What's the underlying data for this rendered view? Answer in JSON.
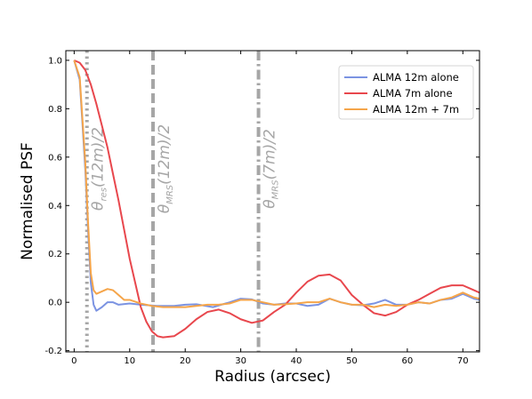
{
  "chart_data": {
    "type": "line",
    "xlabel": "Radius (arcsec)",
    "ylabel": "Normalised PSF",
    "xlim": [
      -1.5,
      73
    ],
    "ylim": [
      -0.205,
      1.04
    ],
    "xticks": [
      0,
      10,
      20,
      30,
      40,
      50,
      60,
      70
    ],
    "yticks": [
      -0.2,
      0.0,
      0.2,
      0.4,
      0.6,
      0.8,
      1.0
    ],
    "ytick_labels": [
      "-0.2",
      "0.0",
      "0.2",
      "0.4",
      "0.6",
      "0.8",
      "1.0"
    ],
    "legend_position": "top-right",
    "series": [
      {
        "name": "ALMA 12m alone",
        "color": "#7b93e2",
        "x": [
          0,
          1,
          2,
          2.5,
          3,
          3.5,
          4,
          5,
          6,
          7,
          8,
          10,
          12,
          15,
          18,
          20,
          22,
          25,
          28,
          30,
          32,
          34,
          36,
          38,
          40,
          42,
          44,
          46,
          48,
          50,
          52,
          54,
          56,
          58,
          60,
          62,
          64,
          66,
          68,
          70,
          72,
          73
        ],
        "y": [
          1.0,
          0.92,
          0.55,
          0.3,
          0.08,
          -0.01,
          -0.035,
          -0.02,
          0.0,
          0.0,
          -0.01,
          -0.005,
          -0.01,
          -0.015,
          -0.015,
          -0.01,
          -0.008,
          -0.02,
          0.0,
          0.015,
          0.012,
          -0.005,
          -0.01,
          -0.005,
          -0.005,
          -0.015,
          -0.01,
          0.015,
          0.0,
          -0.01,
          -0.012,
          -0.005,
          0.01,
          -0.01,
          -0.01,
          0.0,
          -0.005,
          0.01,
          0.015,
          0.035,
          0.015,
          0.01
        ]
      },
      {
        "name": "ALMA 7m alone",
        "color": "#e8474d",
        "x": [
          0,
          1,
          2,
          3,
          4,
          5,
          6,
          7,
          8,
          9,
          10,
          11,
          12,
          13,
          14,
          15,
          16,
          18,
          20,
          22,
          24,
          26,
          28,
          30,
          32,
          34,
          36,
          38,
          40,
          42,
          44,
          46,
          48,
          50,
          52,
          54,
          56,
          58,
          60,
          62,
          64,
          66,
          68,
          70,
          72,
          73
        ],
        "y": [
          1.0,
          0.99,
          0.96,
          0.9,
          0.82,
          0.73,
          0.64,
          0.53,
          0.42,
          0.3,
          0.18,
          0.08,
          -0.02,
          -0.08,
          -0.12,
          -0.14,
          -0.145,
          -0.14,
          -0.11,
          -0.07,
          -0.04,
          -0.03,
          -0.045,
          -0.07,
          -0.085,
          -0.075,
          -0.04,
          -0.01,
          0.04,
          0.085,
          0.11,
          0.115,
          0.09,
          0.03,
          -0.01,
          -0.045,
          -0.055,
          -0.04,
          -0.01,
          0.01,
          0.035,
          0.06,
          0.07,
          0.07,
          0.05,
          0.04
        ]
      },
      {
        "name": "ALMA 12m + 7m",
        "color": "#f5a54a",
        "x": [
          0,
          1,
          2,
          2.5,
          3,
          3.5,
          4,
          5,
          6,
          7,
          8,
          9,
          10,
          12,
          14,
          16,
          18,
          20,
          22,
          24,
          26,
          28,
          30,
          32,
          34,
          36,
          38,
          40,
          42,
          44,
          46,
          48,
          50,
          52,
          54,
          56,
          58,
          60,
          62,
          64,
          66,
          68,
          70,
          72,
          73
        ],
        "y": [
          1.0,
          0.93,
          0.58,
          0.33,
          0.12,
          0.05,
          0.035,
          0.045,
          0.055,
          0.05,
          0.03,
          0.01,
          0.01,
          -0.005,
          -0.015,
          -0.02,
          -0.02,
          -0.02,
          -0.015,
          -0.01,
          -0.01,
          -0.005,
          0.01,
          0.01,
          0.0,
          -0.01,
          -0.008,
          -0.005,
          0.0,
          0.0,
          0.015,
          0.0,
          -0.01,
          -0.01,
          -0.02,
          -0.01,
          -0.015,
          -0.01,
          0.0,
          -0.005,
          0.01,
          0.02,
          0.04,
          0.02,
          0.015
        ]
      }
    ],
    "vlines": [
      {
        "x": 2.3,
        "style": "dotted",
        "label_main": "θ",
        "label_sub": "res",
        "label_tail": "(12m)/2"
      },
      {
        "x": 14.2,
        "style": "dashed",
        "label_main": "θ",
        "label_sub": "MRS",
        "label_tail": "(12m)/2"
      },
      {
        "x": 33.2,
        "style": "dashdot",
        "label_main": "θ",
        "label_sub": "MRS",
        "label_tail": "(7m)/2"
      }
    ],
    "vline_color": "#a6a6a6"
  }
}
